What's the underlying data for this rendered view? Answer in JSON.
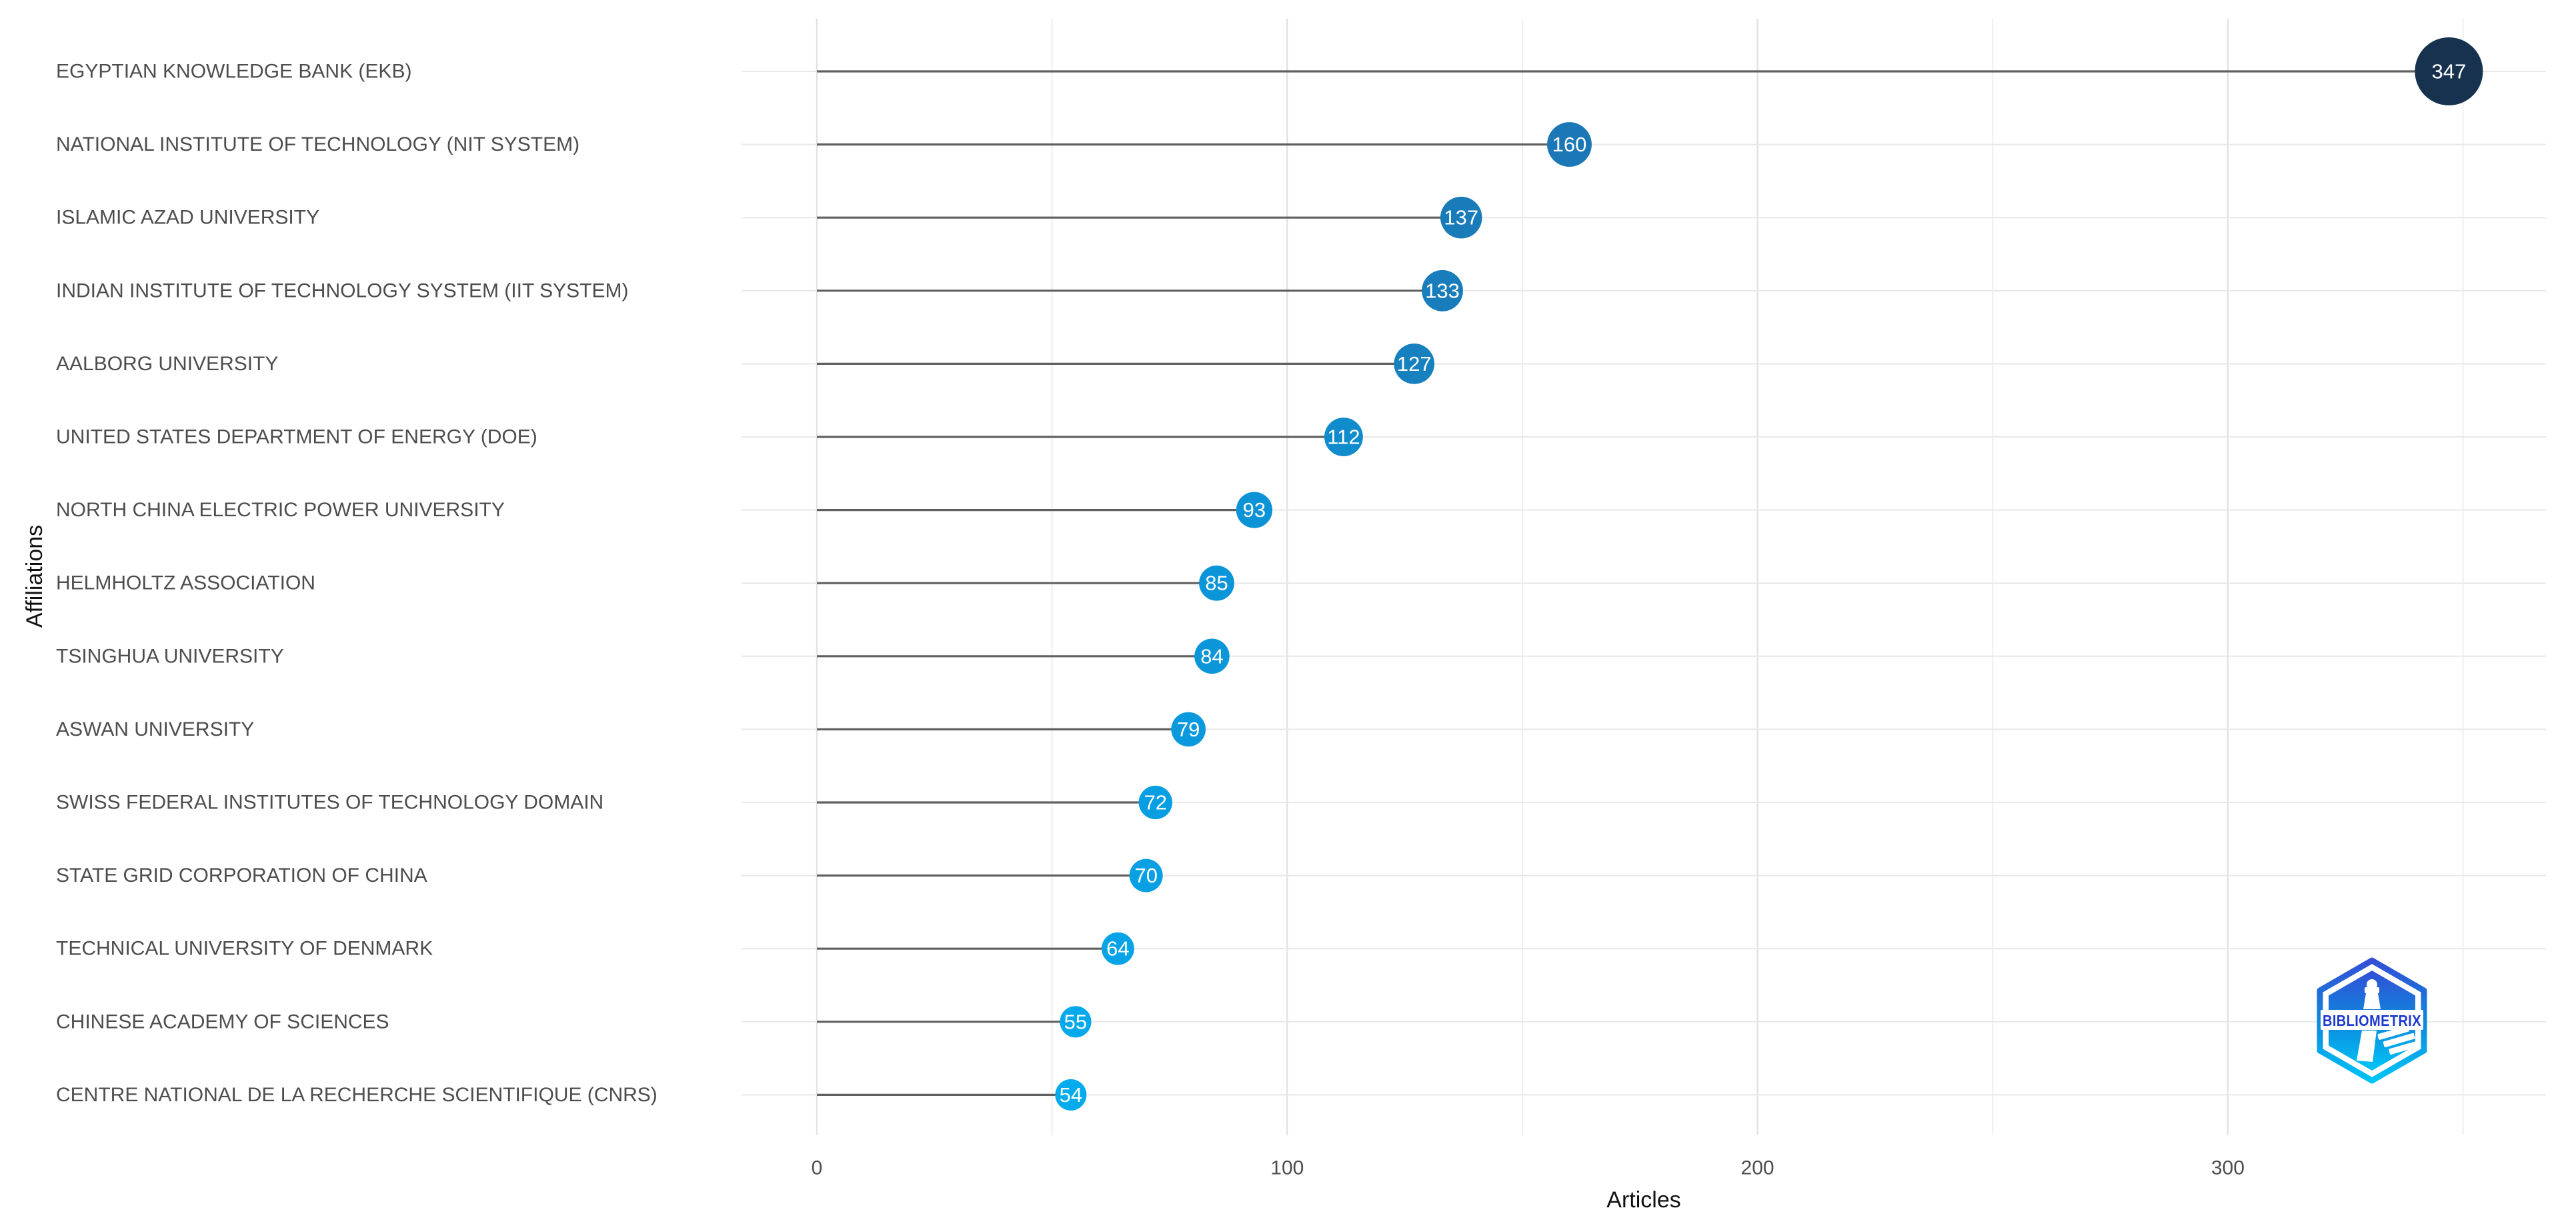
{
  "page": {
    "background": "#ffffff"
  },
  "chart_data": {
    "type": "bar",
    "variant": "horizontal-lollipop",
    "title": "",
    "xlabel": "Articles",
    "ylabel": "Affiliations",
    "categories": [
      "EGYPTIAN KNOWLEDGE BANK (EKB)",
      "NATIONAL INSTITUTE OF TECHNOLOGY (NIT SYSTEM)",
      "ISLAMIC AZAD UNIVERSITY",
      "INDIAN INSTITUTE OF TECHNOLOGY SYSTEM (IIT SYSTEM)",
      "AALBORG UNIVERSITY",
      "UNITED STATES DEPARTMENT OF ENERGY (DOE)",
      "NORTH CHINA ELECTRIC POWER UNIVERSITY",
      "HELMHOLTZ ASSOCIATION",
      "TSINGHUA UNIVERSITY",
      "ASWAN UNIVERSITY",
      "SWISS FEDERAL INSTITUTES OF TECHNOLOGY DOMAIN",
      "STATE GRID CORPORATION OF CHINA",
      "TECHNICAL UNIVERSITY OF DENMARK",
      "CHINESE ACADEMY OF SCIENCES",
      "CENTRE NATIONAL DE LA RECHERCHE SCIENTIFIQUE (CNRS)"
    ],
    "values": [
      347,
      160,
      137,
      133,
      127,
      112,
      93,
      85,
      84,
      79,
      72,
      70,
      64,
      55,
      54
    ],
    "point_colors": [
      "#17324e",
      "#1b77b5",
      "#1a7bb9",
      "#197dbb",
      "#1780bf",
      "#108bcc",
      "#0c93d6",
      "#0b95d9",
      "#0b96da",
      "#0a99dd",
      "#089ee2",
      "#08a0e3",
      "#06a3e6",
      "#03a9eb",
      "#02abec"
    ],
    "x_ticks": [
      0,
      100,
      200,
      300
    ],
    "x_minor_gridlines": [
      50,
      150,
      250,
      350
    ],
    "xlim": [
      0,
      350
    ],
    "grid": true,
    "legend": "none",
    "value_labels_shown": true,
    "stem_color": "#606060",
    "row_grid_color": "#e8e8e8",
    "major_grid_color": "#e3e3e3",
    "minor_grid_color": "#efefef",
    "axis_text_color": "#4d4d4d",
    "value_label_color": "#ffffff"
  },
  "logo": {
    "text": "BIBLIOMETRIX",
    "colors": {
      "top": "#3350d6",
      "mid": "#0e87dd",
      "bottom": "#00c4f5",
      "text": "#1c39cf"
    }
  }
}
